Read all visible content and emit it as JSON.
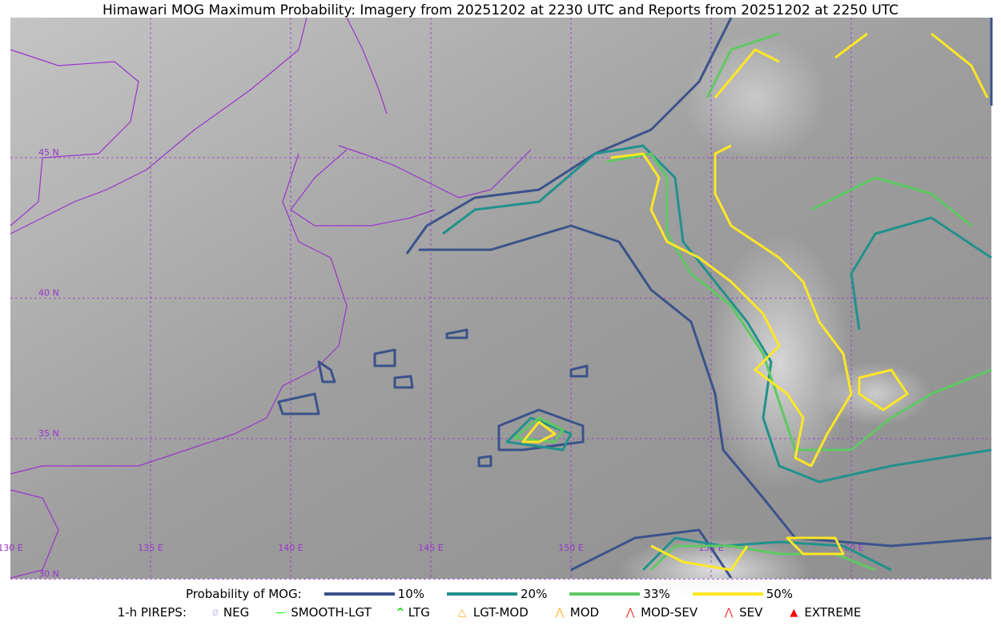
{
  "title": "Himawari MOG Maximum Probability: Imagery from 20251202 at 2230 UTC and Reports from 20251202 at 2250 UTC",
  "map": {
    "lon_labels": [
      "130 E",
      "135 E",
      "140 E",
      "145 E",
      "150 E",
      "155 E",
      "160 E"
    ],
    "lat_labels": [
      "45 N",
      "40 N",
      "35 N",
      "30 N"
    ],
    "grid_color": "#9933cc",
    "coast_color": "#9933cc"
  },
  "legend": {
    "prob_label": "Probability of MOG:",
    "levels": [
      {
        "label": "10%",
        "color": "#3b528b"
      },
      {
        "label": "20%",
        "color": "#21918c"
      },
      {
        "label": "33%",
        "color": "#5ec962"
      },
      {
        "label": "50%",
        "color": "#fde725"
      }
    ],
    "pirep_label": "1-h PIREPS:",
    "pireps": [
      {
        "label": "NEG",
        "icon": "neg-icon",
        "color": "#c8c8f0"
      },
      {
        "label": "SMOOTH-LGT",
        "icon": "smooth-line-icon",
        "color": "#00ff00"
      },
      {
        "label": "LTG",
        "icon": "caret-icon",
        "color": "#00dd00"
      },
      {
        "label": "LGT-MOD",
        "icon": "triangle-outline-icon",
        "color": "#ffb020"
      },
      {
        "label": "MOD",
        "icon": "caret-icon",
        "color": "#ffb020"
      },
      {
        "label": "MOD-SEV",
        "icon": "double-caret-icon",
        "color": "#ff3030"
      },
      {
        "label": "SEV",
        "icon": "double-caret-icon",
        "color": "#ff3030"
      },
      {
        "label": "EXTREME",
        "icon": "filled-triangle-icon",
        "color": "#ff0000"
      }
    ]
  }
}
